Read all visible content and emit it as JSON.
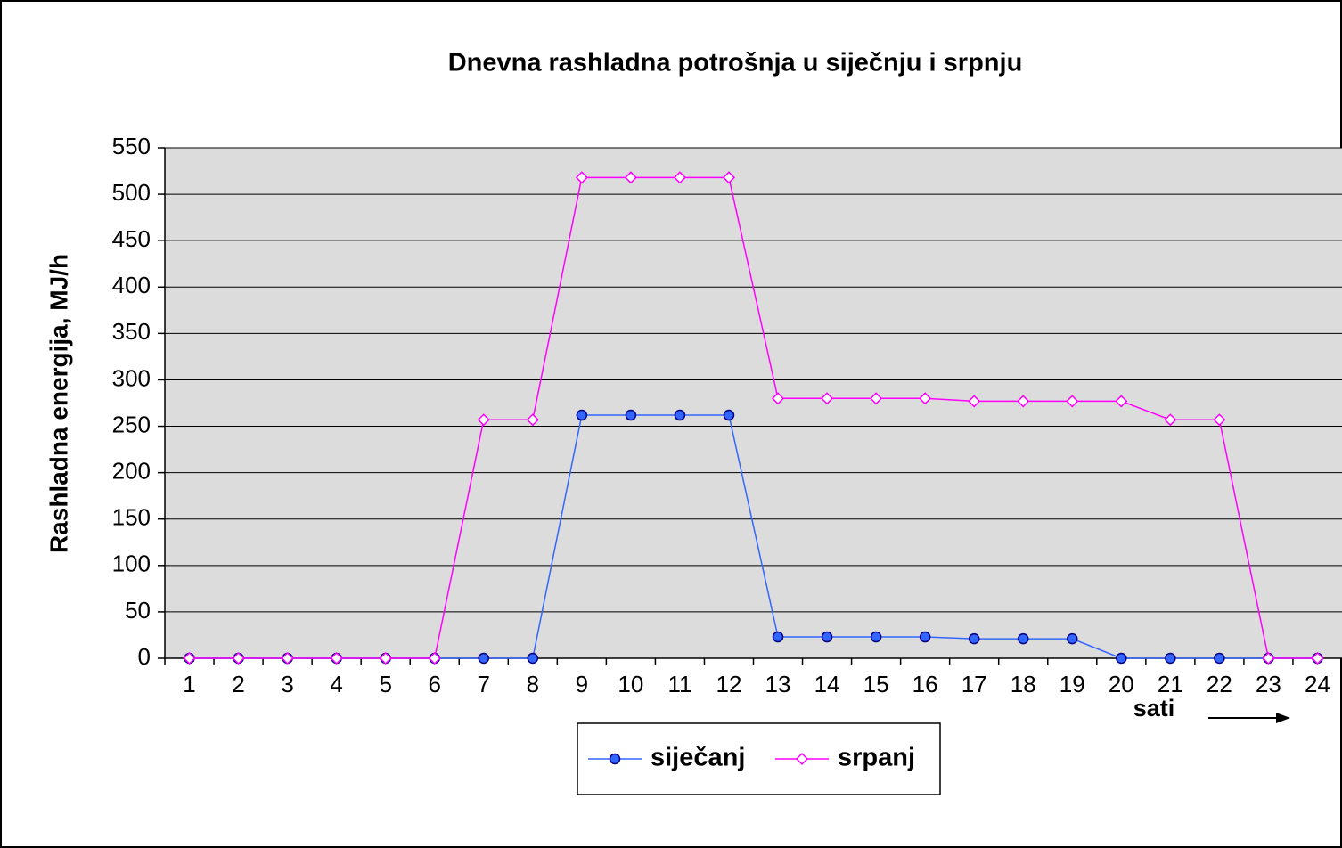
{
  "chart_data": {
    "type": "line",
    "title": "Dnevna rashladna potrošnja  u siječnju i srpnju",
    "y_label": "Rashladna energija, MJ/h",
    "x_label": "sati",
    "categories": [
      "1",
      "2",
      "3",
      "4",
      "5",
      "6",
      "7",
      "8",
      "9",
      "10",
      "11",
      "12",
      "13",
      "14",
      "15",
      "16",
      "17",
      "18",
      "19",
      "20",
      "21",
      "22",
      "23",
      "24"
    ],
    "series": [
      {
        "name": "siječanj",
        "color": "#3366ff",
        "values": [
          0,
          0,
          0,
          0,
          0,
          0,
          0,
          0,
          262,
          262,
          262,
          262,
          23,
          23,
          23,
          23,
          21,
          21,
          21,
          0,
          0,
          0,
          0,
          0
        ]
      },
      {
        "name": "srpanj",
        "color": "#ff00ff",
        "values": [
          0,
          0,
          0,
          0,
          0,
          0,
          257,
          257,
          518,
          518,
          518,
          518,
          280,
          280,
          280,
          280,
          277,
          277,
          277,
          277,
          257,
          257,
          0,
          0
        ]
      }
    ],
    "ylim": [
      0,
      550
    ],
    "yticks": [
      0,
      50,
      100,
      150,
      200,
      250,
      300,
      350,
      400,
      450,
      500,
      550
    ],
    "grid": true,
    "legend": "bottom"
  }
}
